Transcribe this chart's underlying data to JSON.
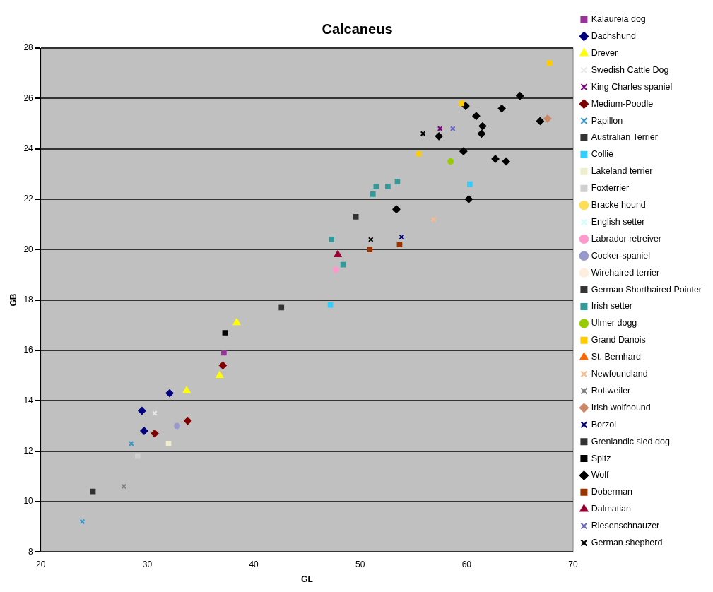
{
  "chart_data": {
    "type": "scatter",
    "title": "Calcaneus",
    "xlabel": "GL",
    "ylabel": "GB",
    "xlim": [
      20,
      70
    ],
    "xticks": [
      20,
      30,
      40,
      50,
      60,
      70
    ],
    "ylim": [
      8,
      28
    ],
    "yticks": [
      8,
      10,
      12,
      14,
      16,
      18,
      20,
      22,
      24,
      26,
      28
    ],
    "grid": "y",
    "legend": "right",
    "series": [
      {
        "name": "Kalaureia dog",
        "color": "#993399",
        "marker": "square",
        "x": [
          37.2
        ],
        "values": [
          15.9
        ]
      },
      {
        "name": "Dachshund",
        "color": "#000080",
        "marker": "diamond",
        "x": [
          32.1,
          29.5,
          29.7
        ],
        "values": [
          14.3,
          13.6,
          12.8
        ]
      },
      {
        "name": "Drever",
        "color": "#ffff00",
        "marker": "triangle",
        "x": [
          38.4,
          36.8,
          33.7
        ],
        "values": [
          17.1,
          15.0,
          14.4
        ]
      },
      {
        "name": "Swedish Cattle Dog",
        "color": "#e8e8e8",
        "marker": "cross",
        "x": [
          30.7
        ],
        "values": [
          13.5
        ]
      },
      {
        "name": "King Charles spaniel",
        "color": "#800080",
        "marker": "cross",
        "x": [
          57.5
        ],
        "values": [
          24.8
        ]
      },
      {
        "name": "Medium-Poodle",
        "color": "#800000",
        "marker": "diamond",
        "x": [
          37.1,
          33.8,
          30.7
        ],
        "values": [
          15.4,
          13.2,
          12.7
        ]
      },
      {
        "name": "Papillon",
        "color": "#3399cc",
        "marker": "cross",
        "x": [
          28.5,
          23.9
        ],
        "values": [
          12.3,
          9.2
        ]
      },
      {
        "name": "Australian Terrier",
        "color": "#333333",
        "marker": "square",
        "x": [
          24.9
        ],
        "values": [
          10.4
        ]
      },
      {
        "name": "Collie",
        "color": "#33ccff",
        "marker": "square",
        "x": [
          60.3,
          47.2
        ],
        "values": [
          22.6,
          17.8
        ]
      },
      {
        "name": "Lakeland terrier",
        "color": "#eeeecc",
        "marker": "square",
        "x": [
          32.0
        ],
        "values": [
          12.3
        ]
      },
      {
        "name": "Foxterrier",
        "color": "#d0d0d0",
        "marker": "square",
        "x": [
          29.1
        ],
        "values": [
          11.8
        ]
      },
      {
        "name": "Bracke hound",
        "color": "#ffdd55",
        "marker": "circle"
      },
      {
        "name": "English setter",
        "color": "#ccffff",
        "marker": "cross"
      },
      {
        "name": "Labrador retreiver",
        "color": "#ff99cc",
        "marker": "circle",
        "x": [
          47.7
        ],
        "values": [
          19.2
        ]
      },
      {
        "name": "Cocker-spaniel",
        "color": "#9999cc",
        "marker": "circle",
        "x": [
          32.8
        ],
        "values": [
          13.0
        ]
      },
      {
        "name": "Wirehaired terrier",
        "color": "#ffeedd",
        "marker": "circle"
      },
      {
        "name": "German Shorthaired Pointer",
        "color": "#333333",
        "marker": "square",
        "x": [
          49.6
        ],
        "values": [
          21.3
        ]
      },
      {
        "name": "Irish setter",
        "color": "#339999",
        "marker": "square",
        "x": [
          53.5,
          51.5,
          52.6,
          51.2,
          47.3,
          48.4
        ],
        "values": [
          22.7,
          22.5,
          22.5,
          22.2,
          20.4,
          19.4
        ]
      },
      {
        "name": "Ulmer dogg",
        "color": "#99cc00",
        "marker": "circle",
        "x": [
          58.5
        ],
        "values": [
          23.5
        ]
      },
      {
        "name": "Grand Danois",
        "color": "#ffcc00",
        "marker": "square",
        "x": [
          67.8,
          59.5,
          55.5
        ],
        "values": [
          27.4,
          25.8,
          23.8
        ]
      },
      {
        "name": "St. Bernhard",
        "color": "#ff6600",
        "marker": "triangle"
      },
      {
        "name": "Newfoundland",
        "color": "#ffbb88",
        "marker": "cross",
        "x": [
          56.9
        ],
        "values": [
          21.2
        ]
      },
      {
        "name": "Rottweiler",
        "color": "#808080",
        "marker": "cross",
        "x": [
          27.8
        ],
        "values": [
          10.6
        ]
      },
      {
        "name": "Irish wolfhound",
        "color": "#cc8866",
        "marker": "diamond",
        "x": [
          67.6
        ],
        "values": [
          25.2
        ]
      },
      {
        "name": "Borzoi",
        "color": "#000080",
        "marker": "cross",
        "x": [
          53.9
        ],
        "values": [
          20.5
        ]
      },
      {
        "name": "Grenlandic sled dog",
        "color": "#333333",
        "marker": "square",
        "x": [
          42.6
        ],
        "values": [
          17.7
        ]
      },
      {
        "name": "Spitz",
        "color": "#000000",
        "marker": "square",
        "x": [
          37.3
        ],
        "values": [
          16.7
        ]
      },
      {
        "name": "Wolf",
        "color": "#000000",
        "marker": "diamond",
        "x": [
          65.0,
          59.9,
          63.3,
          60.9,
          66.9,
          61.5,
          61.4,
          57.4,
          59.7,
          62.7,
          63.7,
          53.4,
          60.2
        ],
        "values": [
          26.1,
          25.7,
          25.6,
          25.3,
          25.1,
          24.9,
          24.6,
          24.5,
          23.9,
          23.6,
          23.5,
          21.6,
          22.0
        ]
      },
      {
        "name": "Doberman",
        "color": "#993300",
        "marker": "square",
        "x": [
          50.9,
          53.7
        ],
        "values": [
          20.0,
          20.2
        ]
      },
      {
        "name": "Dalmatian",
        "color": "#990033",
        "marker": "triangle",
        "x": [
          47.9
        ],
        "values": [
          19.8
        ]
      },
      {
        "name": "Riesenschnauzer",
        "color": "#6666cc",
        "marker": "cross",
        "x": [
          58.7
        ],
        "values": [
          24.8
        ]
      },
      {
        "name": "German shepherd",
        "color": "#000000",
        "marker": "cross",
        "x": [
          55.9,
          51.0
        ],
        "values": [
          24.6,
          20.4
        ]
      }
    ]
  }
}
